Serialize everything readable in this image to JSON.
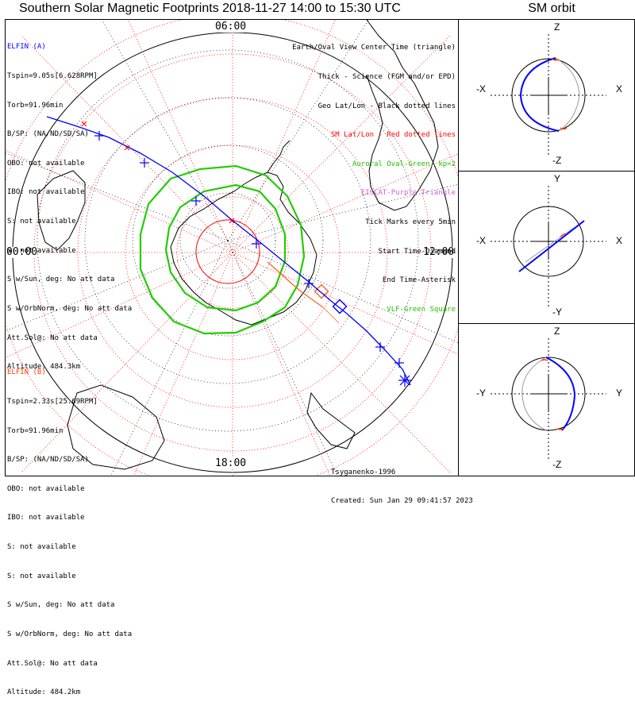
{
  "title": "Southern Solar Magnetic Footprints 2018-11-27 14:00 to 15:30 UTC",
  "orbit_title": "SM orbit",
  "time_labels": {
    "top": "06:00",
    "left": "00:00",
    "right": "12:00",
    "bottom": "18:00"
  },
  "probe_a": {
    "name": "ELFIN (A)",
    "lines": [
      "Tspin=9.05s[6.628RPM]",
      "Torb=91.96min",
      "B/SP: (NA/ND/SD/SA)",
      "OBO: not available",
      "IBO: not available",
      "S: not available",
      "S: not available",
      "S w/Sun, deg: No att data",
      "S w/OrbNorm, deg: No att data",
      "Att.Sol@: No att data",
      "Altitude: 484.3km"
    ]
  },
  "probe_b": {
    "name": "ELFIN (B)",
    "lines": [
      "Tspin=2.33s[25.69RPM]",
      "Torb=91.96min",
      "B/SP: (NA/ND/SD/SA)",
      "OBO: not available",
      "IBO: not available",
      "S: not available",
      "S: not available",
      "S w/Sun, deg: No att data",
      "S w/OrbNorm, deg: No att data",
      "Att.Sol@: No att data",
      "Altitude: 484.2km"
    ]
  },
  "legend": [
    {
      "text": "Earth/Oval View Center Time (triangle)",
      "color": "black"
    },
    {
      "text": "Thick - Science (FGM and/or EPD)",
      "color": "black"
    },
    {
      "text": "Geo Lat/Lon - Black dotted lines",
      "color": "black"
    },
    {
      "text": "SM Lat/Lon - Red dotted lines",
      "color": "red"
    },
    {
      "text": "Auroral Oval-Green, kp=2",
      "color": "green"
    },
    {
      "text": "EISCAT-Purple Triangle",
      "color": "purple"
    },
    {
      "text": "Tick Marks every 5min",
      "color": "black"
    },
    {
      "text": "Start Time-Diamond",
      "color": "black"
    },
    {
      "text": "End Time-Asterisk",
      "color": "black"
    },
    {
      "text": "VLF-Green Square",
      "color": "vlf"
    }
  ],
  "credits": {
    "model": "Tsyganenko-1996",
    "created": "Created: Sun Jan 29 09:41:57 2023"
  },
  "orbit_panels": [
    {
      "top": "Z",
      "bottom": "-Z",
      "left": "-X",
      "right": "X"
    },
    {
      "top": "Y",
      "bottom": "-Y",
      "left": "-X",
      "right": "X"
    },
    {
      "top": "Z",
      "bottom": "-Z",
      "left": "-Y",
      "right": "Y"
    }
  ],
  "colors": {
    "probe_a": "#0000ff",
    "probe_b": "#ff4000",
    "oval": "#22cc00",
    "sm_grid": "#ff0000",
    "geo_grid": "#000000"
  }
}
